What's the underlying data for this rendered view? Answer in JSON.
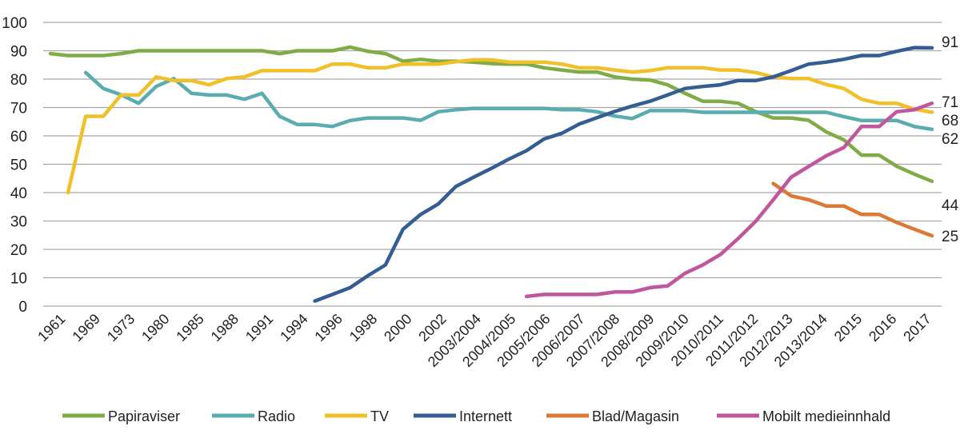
{
  "chart_data": {
    "type": "line",
    "title": "",
    "xlabel": "",
    "ylabel": "",
    "ylim": [
      0,
      100
    ],
    "yticks": [
      0,
      10,
      20,
      30,
      40,
      50,
      60,
      70,
      80,
      90,
      100
    ],
    "grid": true,
    "legend_position": "bottom",
    "x_tick_labels": [
      "1961",
      "1969",
      "1973",
      "1980",
      "1985",
      "1988",
      "1991",
      "1994",
      "1996",
      "1998",
      "2000",
      "2002",
      "2003/2004",
      "2004/2005",
      "2005/2006",
      "2006/2007",
      "2007/2008",
      "2008/2009",
      "2009/2010",
      "2010/2011",
      "2011/2012",
      "2012/2013",
      "2013/2014",
      "2015",
      "2016",
      "2017"
    ],
    "series": [
      {
        "name": "Papiraviser",
        "color": "#7fac47",
        "end_label": "44",
        "values": [
          89,
          88.3,
          88.3,
          88.3,
          89,
          90,
          90,
          90,
          90,
          90,
          90,
          90,
          90,
          89,
          90,
          90,
          90,
          91.3,
          89.8,
          89,
          86.3,
          87,
          86.3,
          86.3,
          86,
          85.5,
          85.3,
          85.3,
          84,
          83.2,
          82.5,
          82.5,
          80.8,
          80,
          79.7,
          78,
          75,
          72.2,
          72.2,
          71.5,
          68.5,
          66.3,
          66.3,
          65.5,
          61.4,
          58.6,
          53.2,
          53.2,
          49.3,
          46.5,
          44
        ]
      },
      {
        "name": "Radio",
        "color": "#5aacb0",
        "end_label": "62",
        "values": [
          null,
          null,
          82.3,
          76.7,
          74.5,
          71.5,
          77.4,
          80.2,
          75,
          74.4,
          74.4,
          72.9,
          75,
          66.9,
          64,
          64,
          63.3,
          65.4,
          66.3,
          66.3,
          66.3,
          65.5,
          68.5,
          69.2,
          69.7,
          69.7,
          69.7,
          69.7,
          69.7,
          69.2,
          69.2,
          68.5,
          67,
          66.1,
          68.9,
          68.9,
          68.9,
          68.3,
          68.3,
          68.3,
          68.3,
          68.3,
          68.3,
          68.3,
          68.3,
          66.8,
          65.4,
          65.4,
          65.4,
          63.3,
          62.3
        ]
      },
      {
        "name": "TV",
        "color": "#f0c02a",
        "end_label": "68",
        "values": [
          null,
          40,
          66.9,
          66.9,
          74.4,
          74.4,
          80.8,
          79.5,
          79.5,
          78,
          80.2,
          80.8,
          83,
          83,
          83,
          83,
          85.3,
          85.3,
          84,
          84,
          85.3,
          85.3,
          85.3,
          86.1,
          86.8,
          86.8,
          86,
          86,
          86,
          85.3,
          84,
          84,
          83.2,
          82.5,
          83,
          84,
          84,
          84,
          83.2,
          83.2,
          82.3,
          80.8,
          80.2,
          80.2,
          78.1,
          76.7,
          72.9,
          71.5,
          71.5,
          69.4,
          68.3
        ]
      },
      {
        "name": "Internett",
        "color": "#345d92",
        "end_label": "91",
        "values": [
          null,
          null,
          null,
          null,
          null,
          null,
          null,
          null,
          null,
          null,
          null,
          null,
          null,
          null,
          null,
          1.8,
          4.1,
          6.5,
          10.7,
          14.5,
          27.1,
          32.3,
          36,
          42.2,
          45.4,
          48.5,
          51.8,
          54.8,
          58.9,
          60.9,
          64.2,
          66.4,
          68.6,
          70.5,
          72.2,
          74.4,
          76.7,
          77.4,
          78,
          79.5,
          79.5,
          80.8,
          83,
          85.3,
          86,
          87,
          88.3,
          88.3,
          89.8,
          91.1,
          91
        ]
      },
      {
        "name": "Blad/Magasin",
        "color": "#dc7a35",
        "end_label": "25",
        "values": [
          null,
          null,
          null,
          null,
          null,
          null,
          null,
          null,
          null,
          null,
          null,
          null,
          null,
          null,
          null,
          null,
          null,
          null,
          null,
          null,
          null,
          null,
          null,
          null,
          null,
          null,
          null,
          null,
          null,
          null,
          null,
          null,
          null,
          null,
          null,
          null,
          null,
          null,
          null,
          null,
          null,
          43.2,
          38.9,
          37.5,
          35.3,
          35.3,
          32.3,
          32.3,
          29.5,
          27.1,
          24.8
        ]
      },
      {
        "name": "Mobilt medieinnhald",
        "color": "#c0569d",
        "end_label": "71",
        "values": [
          null,
          null,
          null,
          null,
          null,
          null,
          null,
          null,
          null,
          null,
          null,
          null,
          null,
          null,
          null,
          null,
          null,
          null,
          null,
          null,
          null,
          null,
          null,
          null,
          null,
          null,
          null,
          3.4,
          4.1,
          4.1,
          4.1,
          4.1,
          5,
          5,
          6.5,
          7.1,
          11.6,
          14.5,
          18.2,
          23.8,
          29.9,
          37.5,
          45.4,
          49.2,
          53,
          55.9,
          63.3,
          63.3,
          68.5,
          69.2,
          71.5
        ]
      }
    ],
    "gridline_color": "#a6a6a6"
  }
}
